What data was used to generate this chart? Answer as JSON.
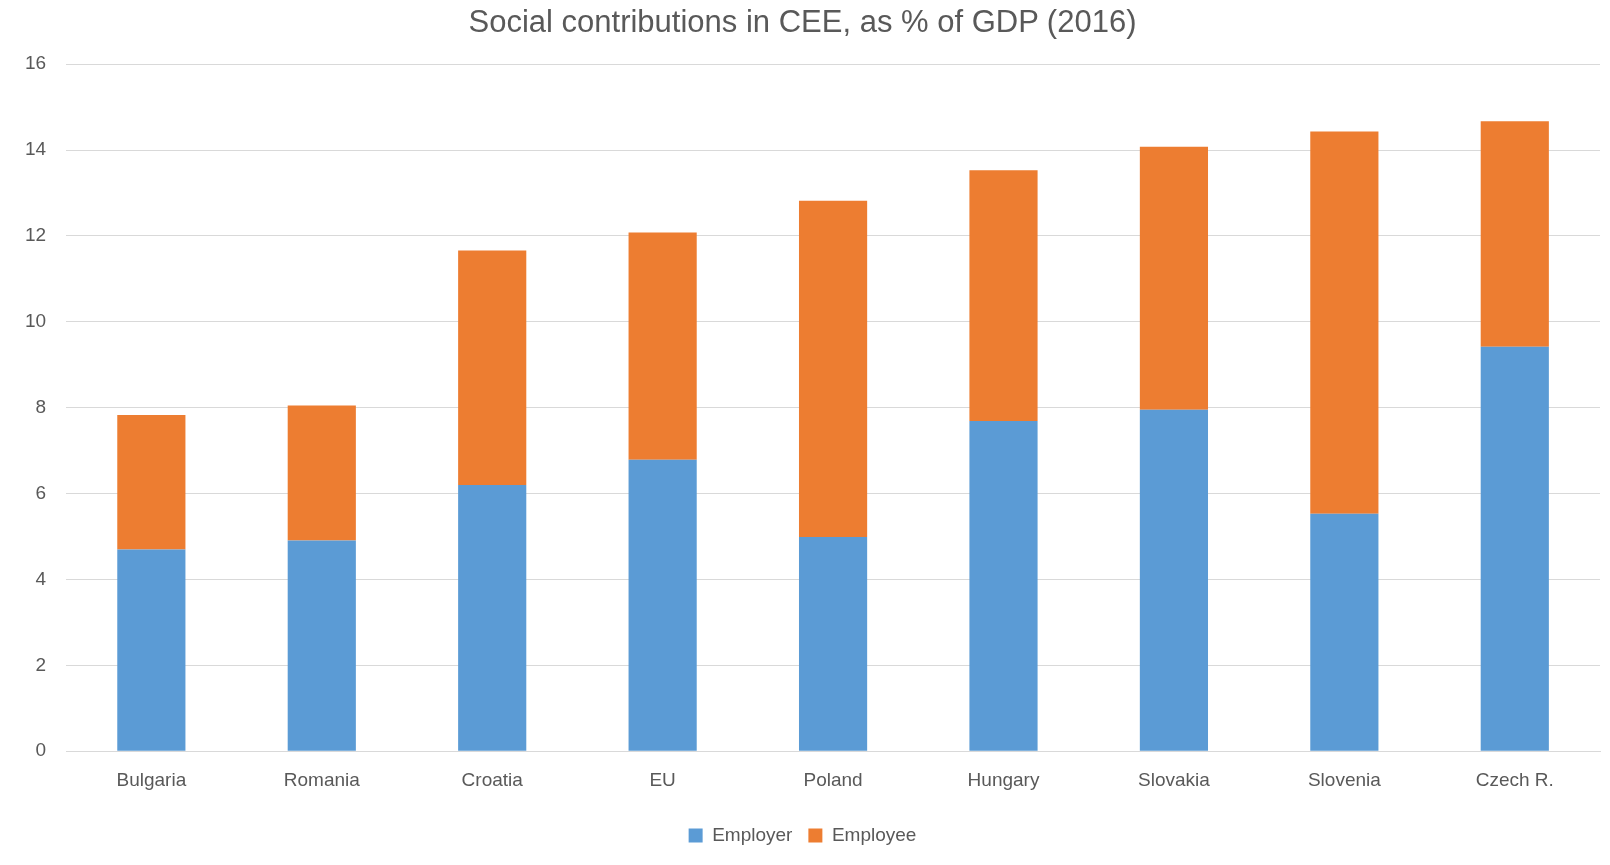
{
  "chart_data": {
    "type": "bar",
    "title": "Social contributions in CEE, as % of GDP (2016)",
    "categories": [
      "Bulgaria",
      "Romania",
      "Croatia",
      "EU",
      "Poland",
      "Hungary",
      "Slovakia",
      "Slovenia",
      "Czech R."
    ],
    "series": [
      {
        "name": "Employer",
        "color": "#5b9bd5",
        "values": [
          4.7,
          4.91,
          6.2,
          6.79,
          4.99,
          7.69,
          7.95,
          5.53,
          9.42
        ]
      },
      {
        "name": "Employee",
        "color": "#ed7d31",
        "values": [
          3.13,
          3.14,
          5.46,
          5.29,
          7.83,
          5.84,
          6.13,
          8.9,
          5.25
        ]
      }
    ],
    "stacked": true,
    "ylim": [
      0,
      16
    ],
    "yticks": [
      0,
      2,
      4,
      6,
      8,
      10,
      12,
      14,
      16
    ],
    "grid": "y",
    "legend": "bottom"
  }
}
